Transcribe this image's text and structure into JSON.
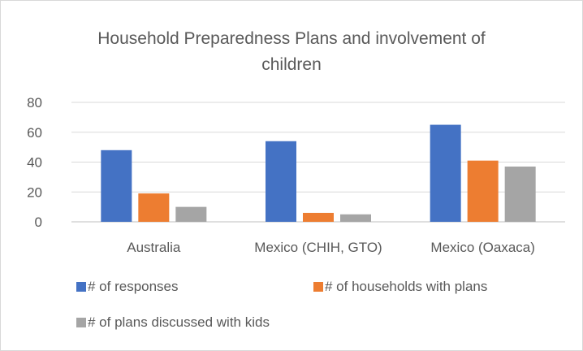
{
  "chart_data": {
    "type": "bar",
    "title_line1": "Household Preparedness Plans and involvement of",
    "title_line2": "children",
    "categories": [
      "Australia",
      "Mexico (CHIH, GTO)",
      "Mexico (Oaxaca)"
    ],
    "series": [
      {
        "name": "# of responses",
        "color": "#4472c4",
        "values": [
          48,
          54,
          65
        ]
      },
      {
        "name": "# of households with plans",
        "color": "#ed7d31",
        "values": [
          19,
          6,
          41
        ]
      },
      {
        "name": "# of plans discussed with kids",
        "color": "#a5a5a5",
        "values": [
          10,
          5,
          37
        ]
      }
    ],
    "yticks": [
      0,
      20,
      40,
      60,
      80
    ],
    "ylim": [
      0,
      80
    ],
    "grid": true,
    "legend": "bottom"
  }
}
